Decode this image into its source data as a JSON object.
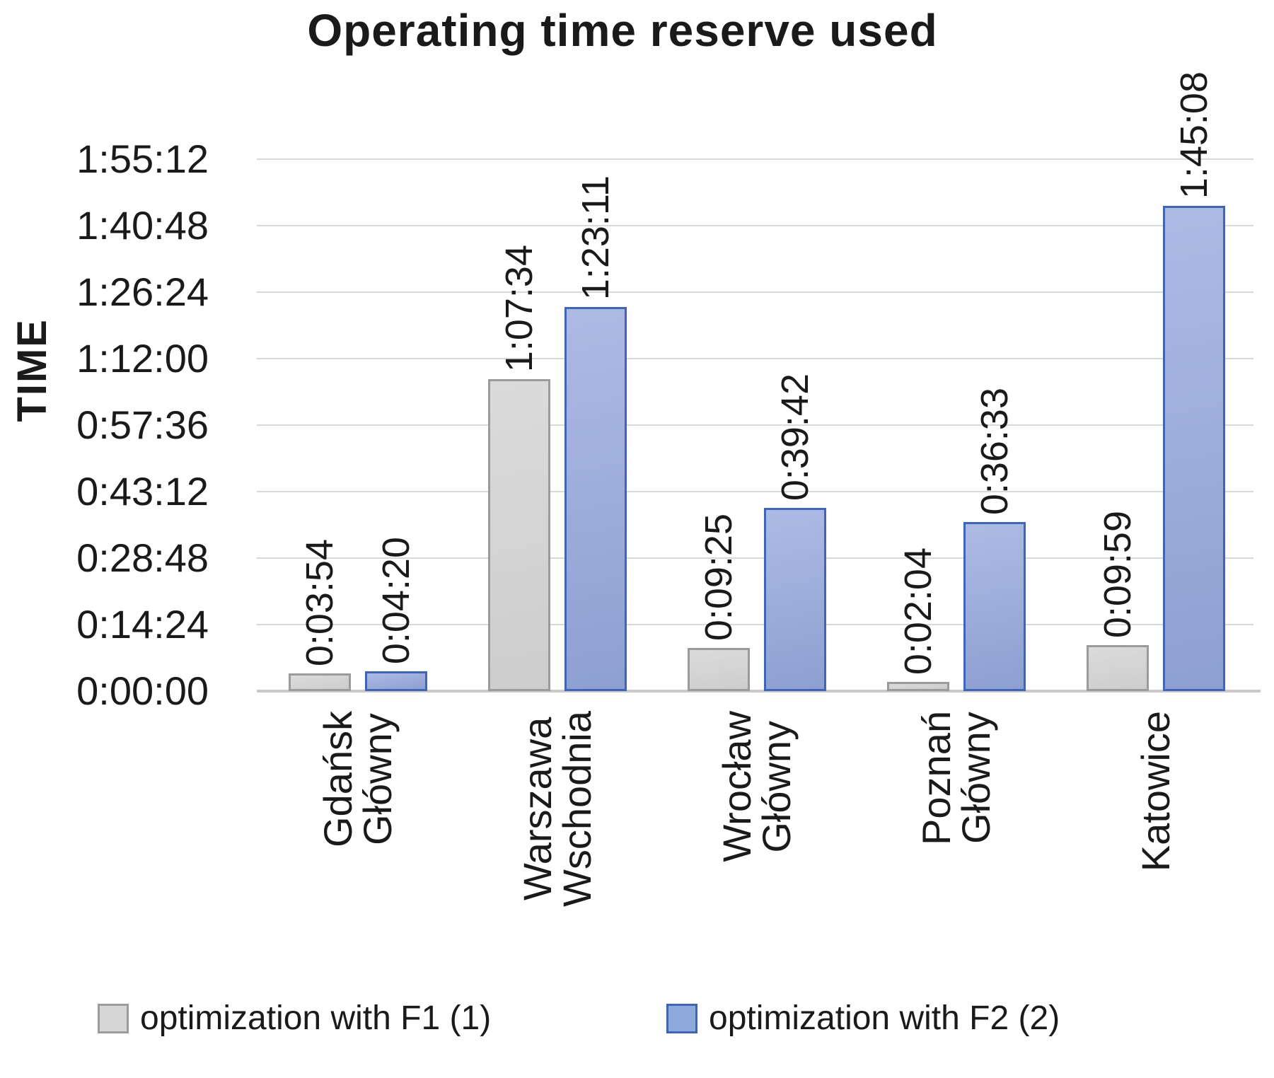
{
  "title": "Operating time reserve used",
  "y_axis": {
    "title": "TIME",
    "ticks": [
      "0:00:00",
      "0:14:24",
      "0:28:48",
      "0:43:12",
      "0:57:36",
      "1:12:00",
      "1:26:24",
      "1:40:48",
      "1:55:12"
    ]
  },
  "legend": [
    {
      "label": "optimization with F1 (1)",
      "swatch": "#d6d6d6",
      "border": "#9b9b9b"
    },
    {
      "label": "optimization with F2 (2)",
      "swatch": "#8ea9db",
      "border": "#3e66b4"
    }
  ],
  "colors": {
    "grid": "#d9d9d9",
    "axis_line": "#c9c9c9",
    "f1_fill": "#d3d3d3",
    "f1_border": "#9b9b9b",
    "f2_fill": "#9aacd9",
    "f2_border": "#3e66b4",
    "text": "#1a1a1a"
  },
  "chart_data": {
    "type": "bar",
    "title": "Operating time reserve used",
    "xlabel": "",
    "ylabel": "TIME",
    "ylim": [
      "0:00:00",
      "1:55:12"
    ],
    "y_tick_step": "0:14:24",
    "grid": true,
    "legend_position": "bottom",
    "categories": [
      "Gdańsk Główny",
      "Warszawa Wschodnia",
      "Wrocław Główny",
      "Poznań Główny",
      "Katowice"
    ],
    "category_lines": [
      [
        "Gdańsk",
        "Główny"
      ],
      [
        "Warszawa",
        "Wschodnia"
      ],
      [
        "Wrocław",
        "Główny"
      ],
      [
        "Poznań",
        "Główny"
      ],
      [
        "Katowice"
      ]
    ],
    "series": [
      {
        "key": "f1",
        "name": "optimization with F1 (1)",
        "values": [
          "0:03:54",
          "1:07:34",
          "0:09:25",
          "0:02:04",
          "0:09:59"
        ]
      },
      {
        "key": "f2",
        "name": "optimization with F2 (2)",
        "values": [
          "0:04:20",
          "1:23:11",
          "0:39:42",
          "0:36:33",
          "1:45:08"
        ]
      }
    ]
  }
}
